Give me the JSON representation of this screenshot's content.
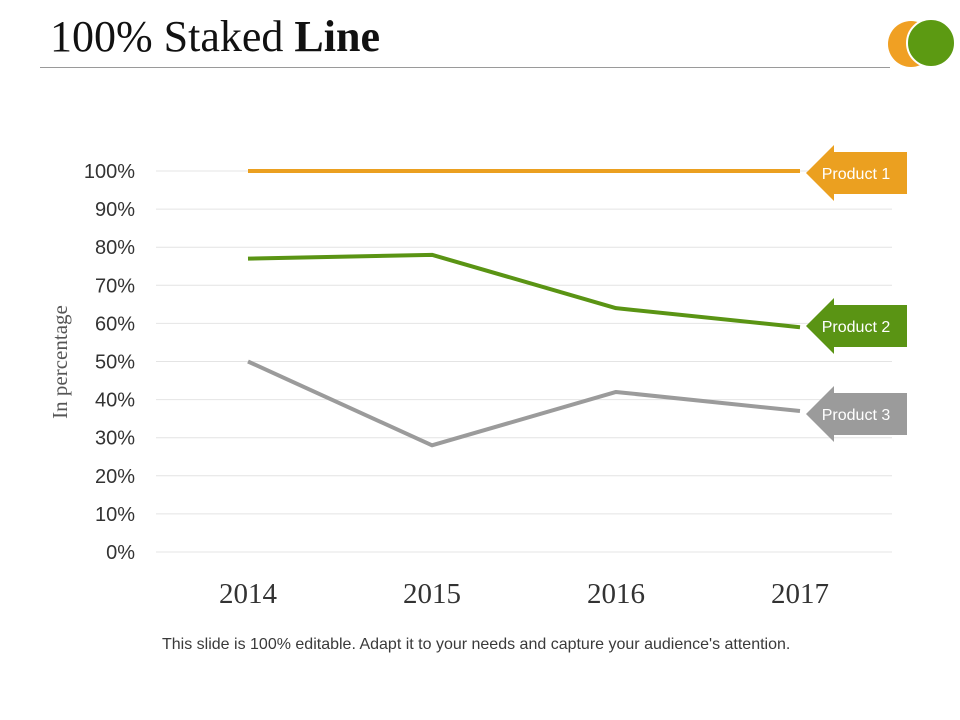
{
  "title": {
    "regular": "100% Staked ",
    "bold": "Line"
  },
  "footer": "This slide is 100% editable. Adapt it to your needs and capture your audience's attention.",
  "logo": {
    "circle_back": "#F0A023",
    "circle_front": "#5C9A12"
  },
  "chart_data": {
    "type": "line",
    "title": "100% Staked Line",
    "xlabel": "",
    "ylabel": "In percentage",
    "categories": [
      "2014",
      "2015",
      "2016",
      "2017"
    ],
    "ylim": [
      0,
      100
    ],
    "yticks": [
      "0%",
      "10%",
      "20%",
      "30%",
      "40%",
      "50%",
      "60%",
      "70%",
      "80%",
      "90%",
      "100%"
    ],
    "grid": true,
    "series": [
      {
        "name": "Product 1",
        "values": [
          100,
          100,
          100,
          100
        ],
        "color": "#EBA020"
      },
      {
        "name": "Product 2",
        "values": [
          77,
          78,
          64,
          59
        ],
        "color": "#5A9414"
      },
      {
        "name": "Product 3",
        "values": [
          50,
          28,
          42,
          37
        ],
        "color": "#9B9B9B"
      }
    ]
  }
}
